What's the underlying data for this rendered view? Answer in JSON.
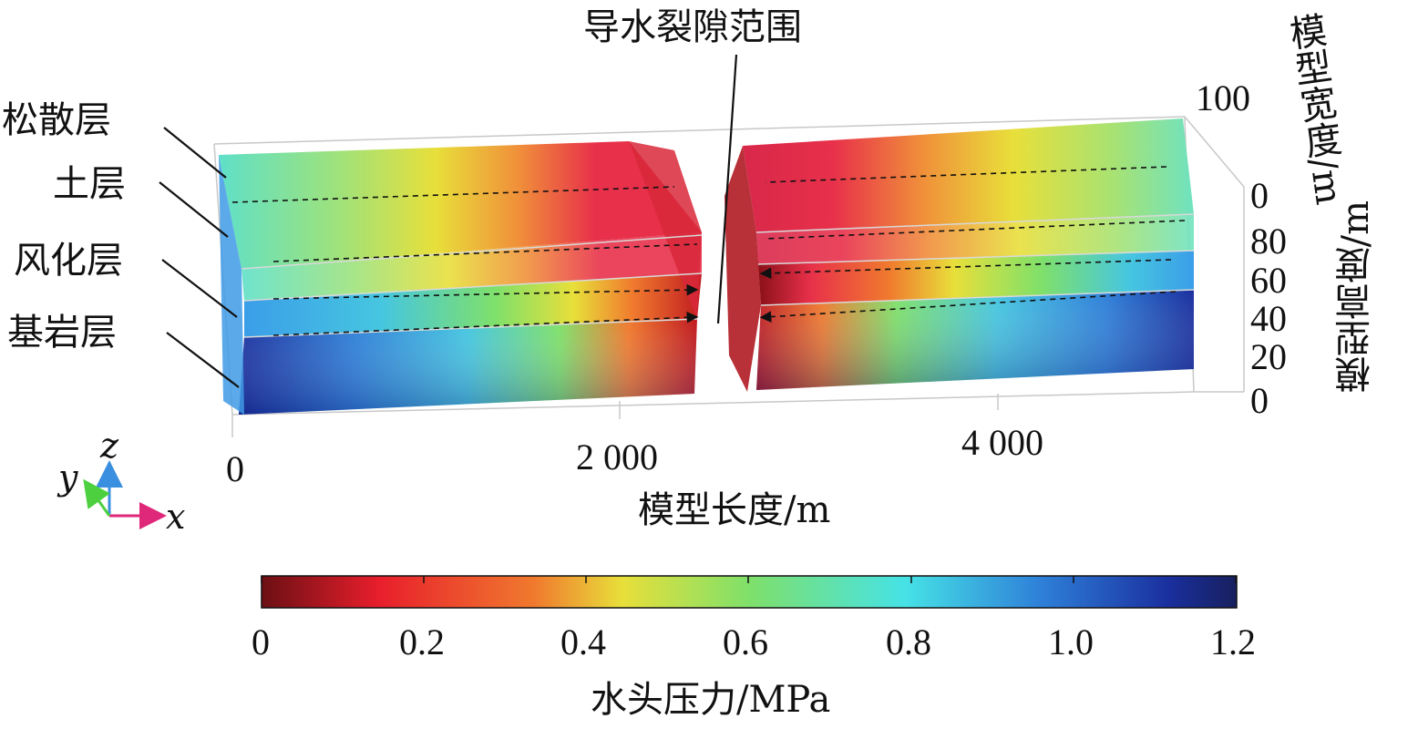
{
  "figure": {
    "title_top": "导水裂隙范围",
    "layers": [
      "松散层",
      "土层",
      "风化层",
      "基岩层"
    ],
    "x_axis": {
      "label": "模型长度/m",
      "ticks": [
        "0",
        "2 000",
        "4 000"
      ]
    },
    "z_axis": {
      "label": "模型高度/m",
      "ticks": [
        "0",
        "20",
        "40",
        "60",
        "80"
      ]
    },
    "y_axis": {
      "label": "模型宽度/m",
      "ticks": [
        "0",
        "100"
      ]
    },
    "axes_triad": {
      "x": "x",
      "y": "y",
      "z": "z"
    },
    "colorbar": {
      "label": "水头压力/MPa",
      "ticks": [
        "0",
        "0.2",
        "0.4",
        "0.6",
        "0.8",
        "1.0",
        "1.2"
      ],
      "min": 0,
      "max": 1.2,
      "colors": [
        "#6b0f14",
        "#e81e2c",
        "#f07a2e",
        "#e8df3a",
        "#7fe06a",
        "#46e2e6",
        "#2e7fd8",
        "#1a2f9e",
        "#17205e"
      ]
    }
  }
}
